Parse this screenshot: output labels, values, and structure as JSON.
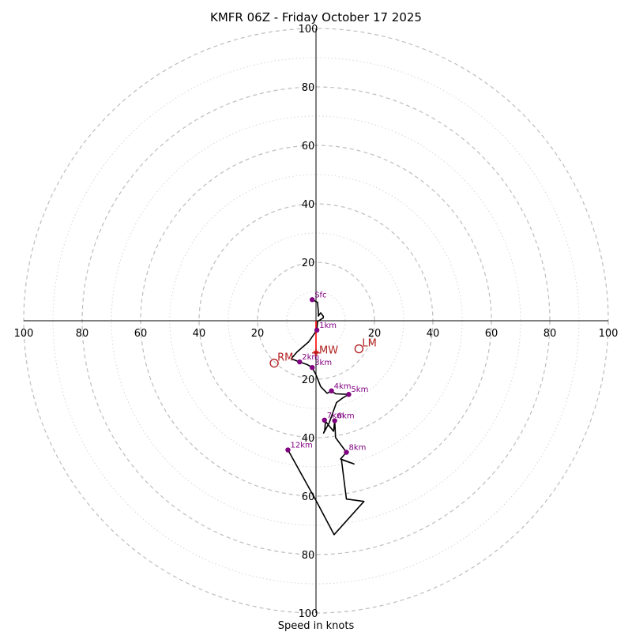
{
  "chart_data": {
    "type": "hodograph",
    "title": "KMFR 06Z - Friday October 17 2025",
    "xlabel": "Speed in knots",
    "units": "knots",
    "rlim": [
      0,
      100
    ],
    "major_rings": [
      20,
      40,
      60,
      80,
      100
    ],
    "minor_rings": [
      10,
      30,
      50,
      70,
      90
    ],
    "tick_labels": {
      "top": [
        "20",
        "40",
        "60",
        "80",
        "100"
      ],
      "bottom": [
        "20",
        "40",
        "60",
        "80",
        "100"
      ],
      "left": [
        "20",
        "40",
        "60",
        "80",
        "100"
      ],
      "right": [
        "20",
        "40",
        "60",
        "80",
        "100"
      ]
    },
    "trace_uv": [
      [
        -1.3,
        7.2
      ],
      [
        0.5,
        6.3
      ],
      [
        0.8,
        3.2
      ],
      [
        0.8,
        1.6
      ],
      [
        1.6,
        2.7
      ],
      [
        2.5,
        1.5
      ],
      [
        2.5,
        1.0
      ],
      [
        0.5,
        -0.3
      ],
      [
        0.3,
        -3.2
      ],
      [
        -2.5,
        -7.2
      ],
      [
        -6.5,
        -10.7
      ],
      [
        -8.5,
        -13.0
      ],
      [
        -5.6,
        -14.1
      ],
      [
        -3.0,
        -15.0
      ],
      [
        -1.3,
        -16.0
      ],
      [
        0.0,
        -18.5
      ],
      [
        1.6,
        -22.5
      ],
      [
        3.8,
        -24.8
      ],
      [
        5.3,
        -24.0
      ],
      [
        6.7,
        -25.0
      ],
      [
        11.2,
        -25.2
      ],
      [
        9.0,
        -26.5
      ],
      [
        7.0,
        -28.0
      ],
      [
        4.5,
        -35.0
      ],
      [
        2.6,
        -38.4
      ],
      [
        3.0,
        -37.4
      ],
      [
        3.2,
        -35.0
      ],
      [
        2.9,
        -34.0
      ],
      [
        6.0,
        -37.8
      ],
      [
        6.4,
        -34.2
      ],
      [
        6.7,
        -40.0
      ],
      [
        10.4,
        -45.0
      ],
      [
        8.4,
        -47.3
      ],
      [
        13.0,
        -49.0
      ],
      [
        8.7,
        -47.5
      ],
      [
        10.4,
        -61.0
      ],
      [
        16.4,
        -61.8
      ],
      [
        6.2,
        -73.2
      ],
      [
        0.0,
        -61.5
      ],
      [
        -9.6,
        -44.2
      ]
    ],
    "height_markers": [
      {
        "label": "Sfc",
        "u": -1.3,
        "v": 7.2
      },
      {
        "label": "1km",
        "u": 0.3,
        "v": -3.2
      },
      {
        "label": "2km",
        "u": -5.6,
        "v": -14.1
      },
      {
        "label": "3km",
        "u": -1.3,
        "v": -16.0
      },
      {
        "label": "4km",
        "u": 5.3,
        "v": -24.0
      },
      {
        "label": "5km",
        "u": 11.2,
        "v": -25.2
      },
      {
        "label": "6km",
        "u": 6.4,
        "v": -34.2
      },
      {
        "label": "7km",
        "u": 2.9,
        "v": -34.0
      },
      {
        "label": "8km",
        "u": 10.4,
        "v": -45.0
      },
      {
        "label": "12km",
        "u": -9.6,
        "v": -44.2
      }
    ],
    "storm_motion": [
      {
        "label": "RM",
        "u": -14.3,
        "v": -14.5
      },
      {
        "label": "LM",
        "u": 14.7,
        "v": -9.6
      },
      {
        "label": "MW",
        "u": 0.0,
        "v": -11.0
      }
    ],
    "shear_vector": {
      "from": [
        0.0,
        0.0
      ],
      "to": [
        0.0,
        -12.0
      ]
    },
    "colors": {
      "trace": "#000000",
      "height_marker": "#800080",
      "storm_motion": "#b22222",
      "shear_arrow": "#ff0000"
    }
  }
}
